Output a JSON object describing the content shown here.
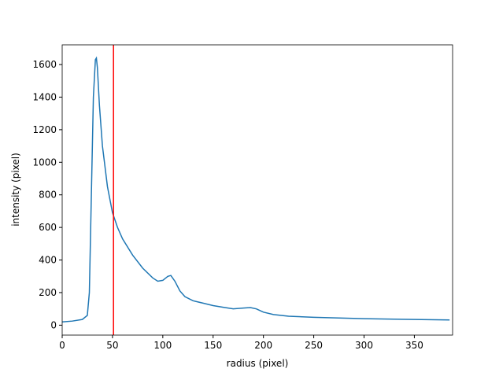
{
  "chart_data": {
    "type": "line",
    "xlabel": "radius (pixel)",
    "ylabel": "intensity (pixel)",
    "x": [
      0,
      10,
      20,
      25,
      27,
      29,
      31,
      33,
      34,
      35,
      37,
      40,
      45,
      50,
      55,
      60,
      70,
      80,
      90,
      95,
      100,
      105,
      108,
      112,
      117,
      122,
      130,
      140,
      150,
      160,
      170,
      180,
      187,
      193,
      200,
      210,
      225,
      250,
      300,
      350,
      385
    ],
    "series": [
      {
        "color": "#1f77b4",
        "values": [
          20,
          25,
          35,
          60,
          200,
          800,
          1400,
          1630,
          1640,
          1580,
          1350,
          1100,
          850,
          690,
          600,
          530,
          430,
          350,
          290,
          270,
          275,
          300,
          305,
          270,
          210,
          175,
          150,
          135,
          120,
          110,
          100,
          105,
          108,
          100,
          80,
          65,
          55,
          48,
          40,
          35,
          32
        ]
      }
    ],
    "vline": {
      "x": 51,
      "color": "red"
    },
    "xlim": [
      0,
      388
    ],
    "ylim": [
      -61,
      1721
    ],
    "xticks": [
      0,
      50,
      100,
      150,
      200,
      250,
      300,
      350
    ],
    "yticks": [
      0,
      200,
      400,
      600,
      800,
      1000,
      1200,
      1400,
      1600
    ]
  }
}
